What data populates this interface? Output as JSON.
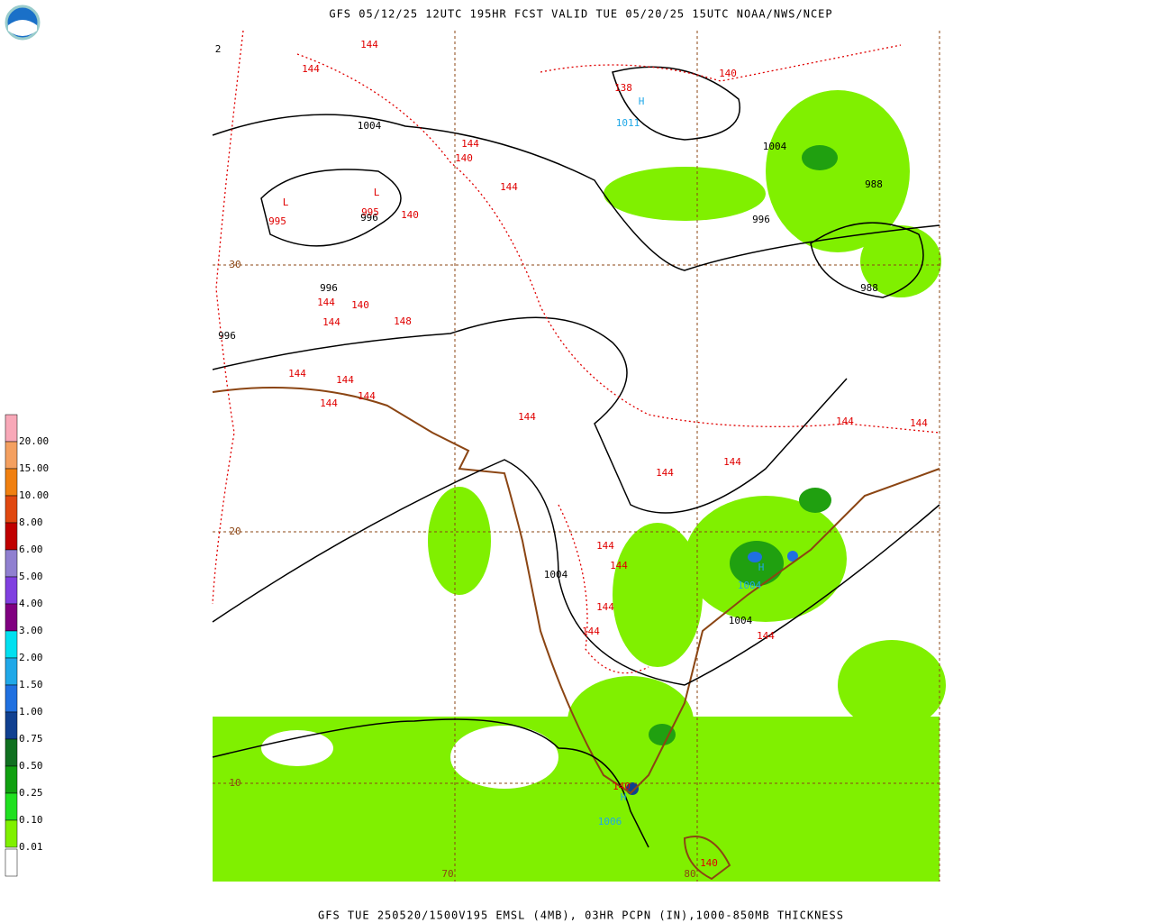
{
  "header": {
    "title": "GFS 05/12/25 12UTC 195HR FCST VALID TUE 05/20/25 15UTC NOAA/NWS/NCEP"
  },
  "footer": {
    "caption": "GFS TUE 250520/1500V195 EMSL (4MB), 03HR PCPN (IN),1000-850MB THICKNESS"
  },
  "legend": {
    "items": [
      {
        "label": "20.00",
        "color": "#f8a8b8"
      },
      {
        "label": "15.00",
        "color": "#f4a060"
      },
      {
        "label": "10.00",
        "color": "#f08010"
      },
      {
        "label": "8.00",
        "color": "#e04810"
      },
      {
        "label": "6.00",
        "color": "#c00000"
      },
      {
        "label": "5.00",
        "color": "#9080d0"
      },
      {
        "label": "4.00",
        "color": "#8040e0"
      },
      {
        "label": "3.00",
        "color": "#800080"
      },
      {
        "label": "2.00",
        "color": "#00e0f0"
      },
      {
        "label": "1.50",
        "color": "#20a8e8"
      },
      {
        "label": "1.00",
        "color": "#2070e0"
      },
      {
        "label": "0.75",
        "color": "#104090"
      },
      {
        "label": "0.50",
        "color": "#107020"
      },
      {
        "label": "0.25",
        "color": "#10a010"
      },
      {
        "label": "0.10",
        "color": "#20e020"
      },
      {
        "label": "0.01",
        "color": "#80f000"
      }
    ]
  },
  "map": {
    "isobar_labels": [
      "1004",
      "1004",
      "996",
      "996",
      "996",
      "996",
      "988",
      "988",
      "1004",
      "1004"
    ],
    "thickness_labels": [
      "144",
      "144",
      "144",
      "144",
      "144",
      "144",
      "144",
      "144",
      "144",
      "144",
      "144",
      "144",
      "144",
      "144",
      "144",
      "144",
      "144",
      "144",
      "144",
      "144",
      "140",
      "140",
      "140",
      "140",
      "140",
      "140",
      "138",
      "148"
    ],
    "centers": [
      {
        "symbol": "L",
        "value": "995"
      },
      {
        "symbol": "L",
        "value": "995"
      },
      {
        "symbol": "H",
        "value": "1011"
      },
      {
        "symbol": "H",
        "value": "1004"
      },
      {
        "symbol": "H",
        "value": "1006"
      }
    ],
    "grid_labels": [
      "30",
      "20",
      "10",
      "70",
      "80",
      "2"
    ]
  }
}
